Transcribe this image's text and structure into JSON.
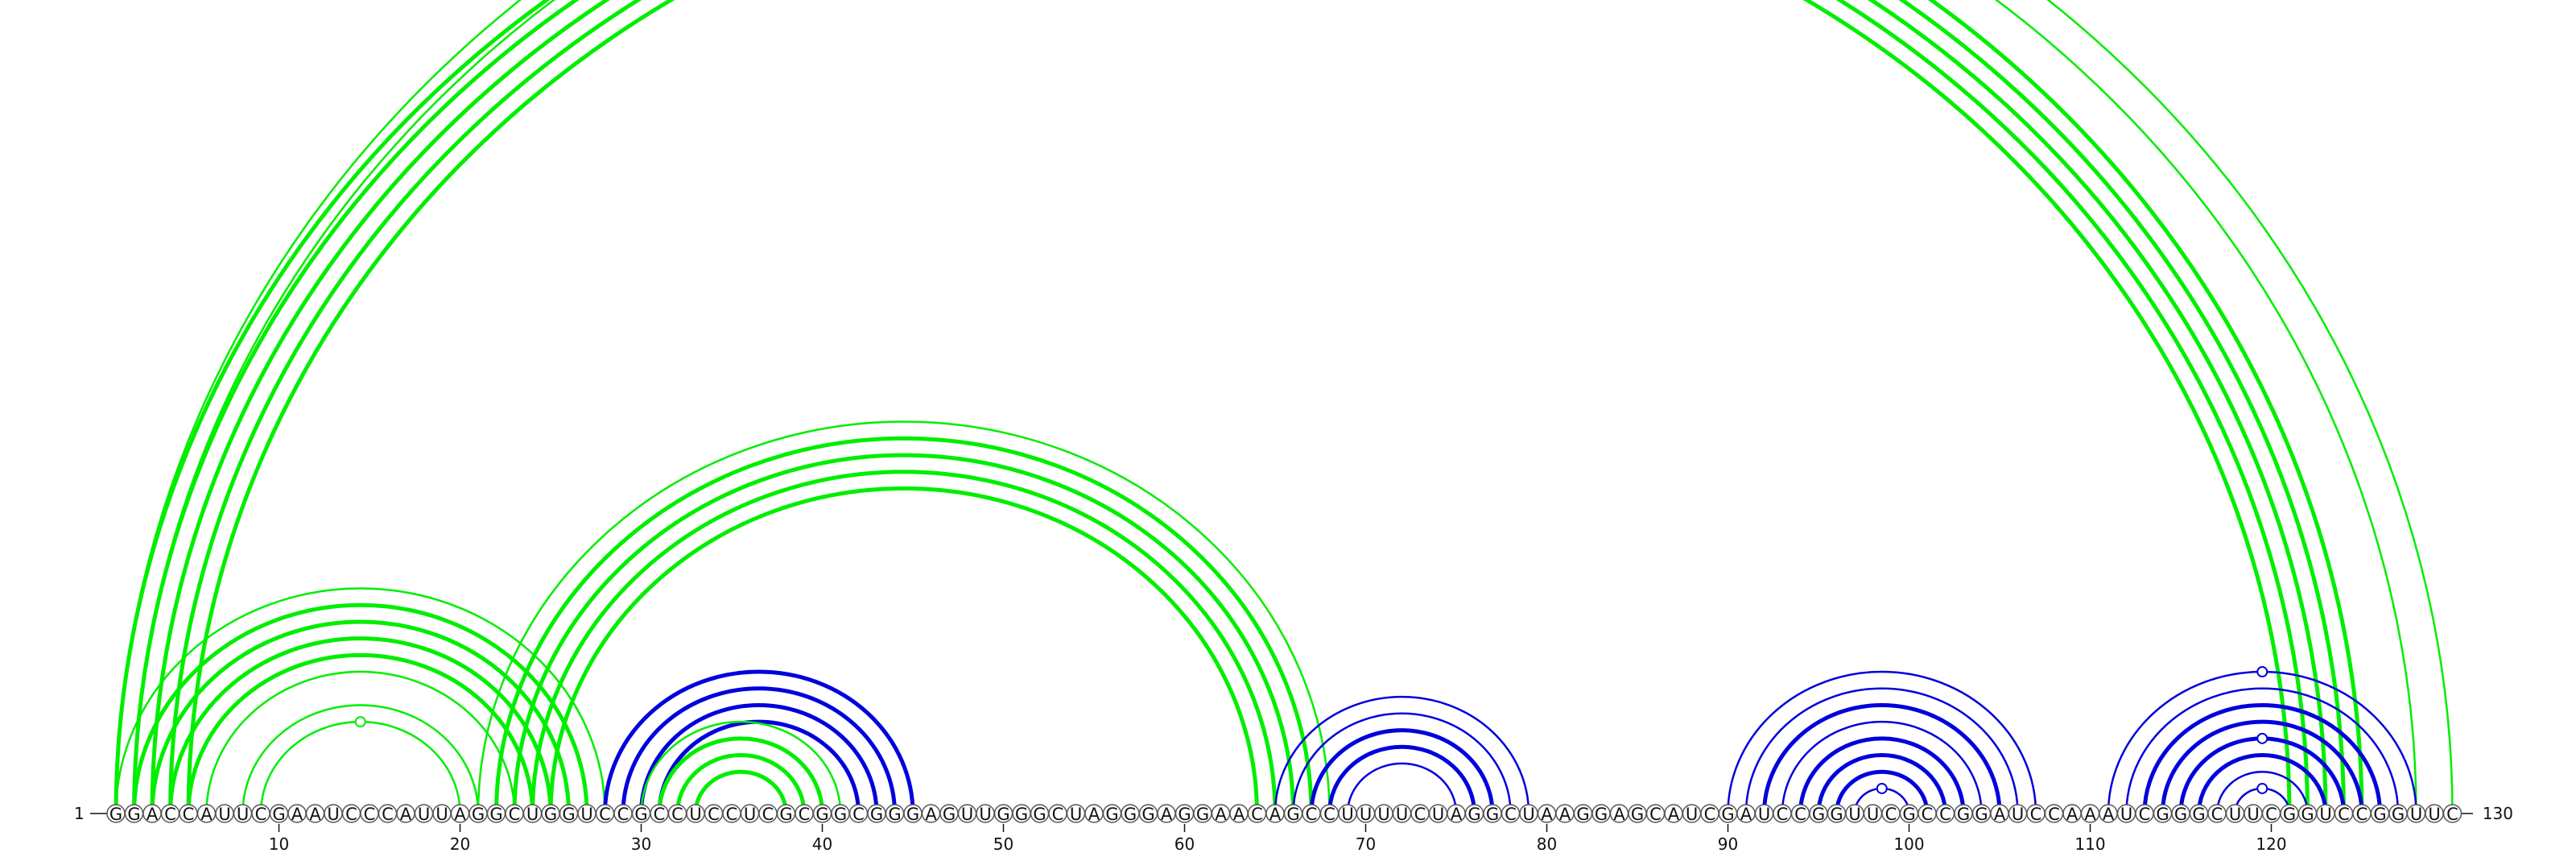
{
  "sequence": "GGACCAUUCGAAUCCCAUUAGGCUGGUCCGCCUCCUCGCGGCGGGAGUUGGGCUAGGGAGGAACAGCCUUUUCUAGGCUAAGGAGCAUCGAUCCGGUUCGCCGGAUCCAAAUCGGGCUUCGGUCCGGUUC",
  "start_label": "1",
  "end_label": "130",
  "ticks": [
    "10",
    "20",
    "30",
    "40",
    "50",
    "60",
    "70",
    "80",
    "90",
    "100",
    "110",
    "120"
  ],
  "colors": {
    "outer": "#00ee00",
    "inner": "#0000dd"
  },
  "chart_data": {
    "type": "arc",
    "sequence_length": 130,
    "arcs": [
      {
        "i": 1,
        "j": 125,
        "color": "outer",
        "weight": 2
      },
      {
        "i": 2,
        "j": 124,
        "color": "outer",
        "weight": 2
      },
      {
        "i": 3,
        "j": 123,
        "color": "outer",
        "weight": 2
      },
      {
        "i": 4,
        "j": 122,
        "color": "outer",
        "weight": 2
      },
      {
        "i": 5,
        "j": 121,
        "color": "outer",
        "weight": 2
      },
      {
        "i": 1,
        "j": 130,
        "color": "outer",
        "weight": 1
      },
      {
        "i": 2,
        "j": 128,
        "color": "outer",
        "weight": 1
      },
      {
        "i": 1,
        "j": 28,
        "color": "outer",
        "weight": 1
      },
      {
        "i": 2,
        "j": 27,
        "color": "outer",
        "weight": 2
      },
      {
        "i": 3,
        "j": 26,
        "color": "outer",
        "weight": 2
      },
      {
        "i": 4,
        "j": 25,
        "color": "outer",
        "weight": 2
      },
      {
        "i": 5,
        "j": 24,
        "color": "outer",
        "weight": 2
      },
      {
        "i": 6,
        "j": 23,
        "color": "outer",
        "weight": 1
      },
      {
        "i": 8,
        "j": 21,
        "color": "outer",
        "weight": 1
      },
      {
        "i": 9,
        "j": 20,
        "color": "outer",
        "weight": 1
      },
      {
        "i": 21,
        "j": 68,
        "color": "outer",
        "weight": 1
      },
      {
        "i": 22,
        "j": 67,
        "color": "outer",
        "weight": 2
      },
      {
        "i": 23,
        "j": 66,
        "color": "outer",
        "weight": 2
      },
      {
        "i": 24,
        "j": 65,
        "color": "outer",
        "weight": 2
      },
      {
        "i": 25,
        "j": 64,
        "color": "outer",
        "weight": 2
      },
      {
        "i": 28,
        "j": 45,
        "color": "inner",
        "weight": 2
      },
      {
        "i": 29,
        "j": 44,
        "color": "inner",
        "weight": 2
      },
      {
        "i": 30,
        "j": 43,
        "color": "inner",
        "weight": 2
      },
      {
        "i": 31,
        "j": 42,
        "color": "inner",
        "weight": 2
      },
      {
        "i": 30,
        "j": 41,
        "color": "outer",
        "weight": 1
      },
      {
        "i": 31,
        "j": 40,
        "color": "outer",
        "weight": 2
      },
      {
        "i": 32,
        "j": 39,
        "color": "outer",
        "weight": 2
      },
      {
        "i": 33,
        "j": 38,
        "color": "outer",
        "weight": 2
      },
      {
        "i": 65,
        "j": 79,
        "color": "inner",
        "weight": 1
      },
      {
        "i": 66,
        "j": 78,
        "color": "inner",
        "weight": 1
      },
      {
        "i": 67,
        "j": 77,
        "color": "inner",
        "weight": 2
      },
      {
        "i": 68,
        "j": 76,
        "color": "inner",
        "weight": 2
      },
      {
        "i": 69,
        "j": 75,
        "color": "inner",
        "weight": 1
      },
      {
        "i": 90,
        "j": 107,
        "color": "inner",
        "weight": 1
      },
      {
        "i": 91,
        "j": 106,
        "color": "inner",
        "weight": 1
      },
      {
        "i": 92,
        "j": 105,
        "color": "inner",
        "weight": 2
      },
      {
        "i": 93,
        "j": 104,
        "color": "inner",
        "weight": 1
      },
      {
        "i": 94,
        "j": 103,
        "color": "inner",
        "weight": 2
      },
      {
        "i": 95,
        "j": 102,
        "color": "inner",
        "weight": 2
      },
      {
        "i": 96,
        "j": 101,
        "color": "inner",
        "weight": 2
      },
      {
        "i": 97,
        "j": 100,
        "color": "inner",
        "weight": 1
      },
      {
        "i": 111,
        "j": 128,
        "color": "inner",
        "weight": 1
      },
      {
        "i": 112,
        "j": 127,
        "color": "inner",
        "weight": 1
      },
      {
        "i": 113,
        "j": 126,
        "color": "inner",
        "weight": 2
      },
      {
        "i": 114,
        "j": 125,
        "color": "inner",
        "weight": 2
      },
      {
        "i": 115,
        "j": 124,
        "color": "inner",
        "weight": 2
      },
      {
        "i": 116,
        "j": 123,
        "color": "inner",
        "weight": 2
      },
      {
        "i": 117,
        "j": 122,
        "color": "inner",
        "weight": 1
      },
      {
        "i": 118,
        "j": 121,
        "color": "inner",
        "weight": 1
      }
    ],
    "markers": [
      {
        "i": 1,
        "j": 130,
        "color": "outer"
      },
      {
        "i": 9,
        "j": 20,
        "color": "outer"
      },
      {
        "i": 97,
        "j": 100,
        "color": "inner"
      },
      {
        "i": 111,
        "j": 128,
        "color": "inner"
      },
      {
        "i": 115,
        "j": 124,
        "color": "inner"
      },
      {
        "i": 118,
        "j": 121,
        "color": "inner"
      }
    ]
  }
}
